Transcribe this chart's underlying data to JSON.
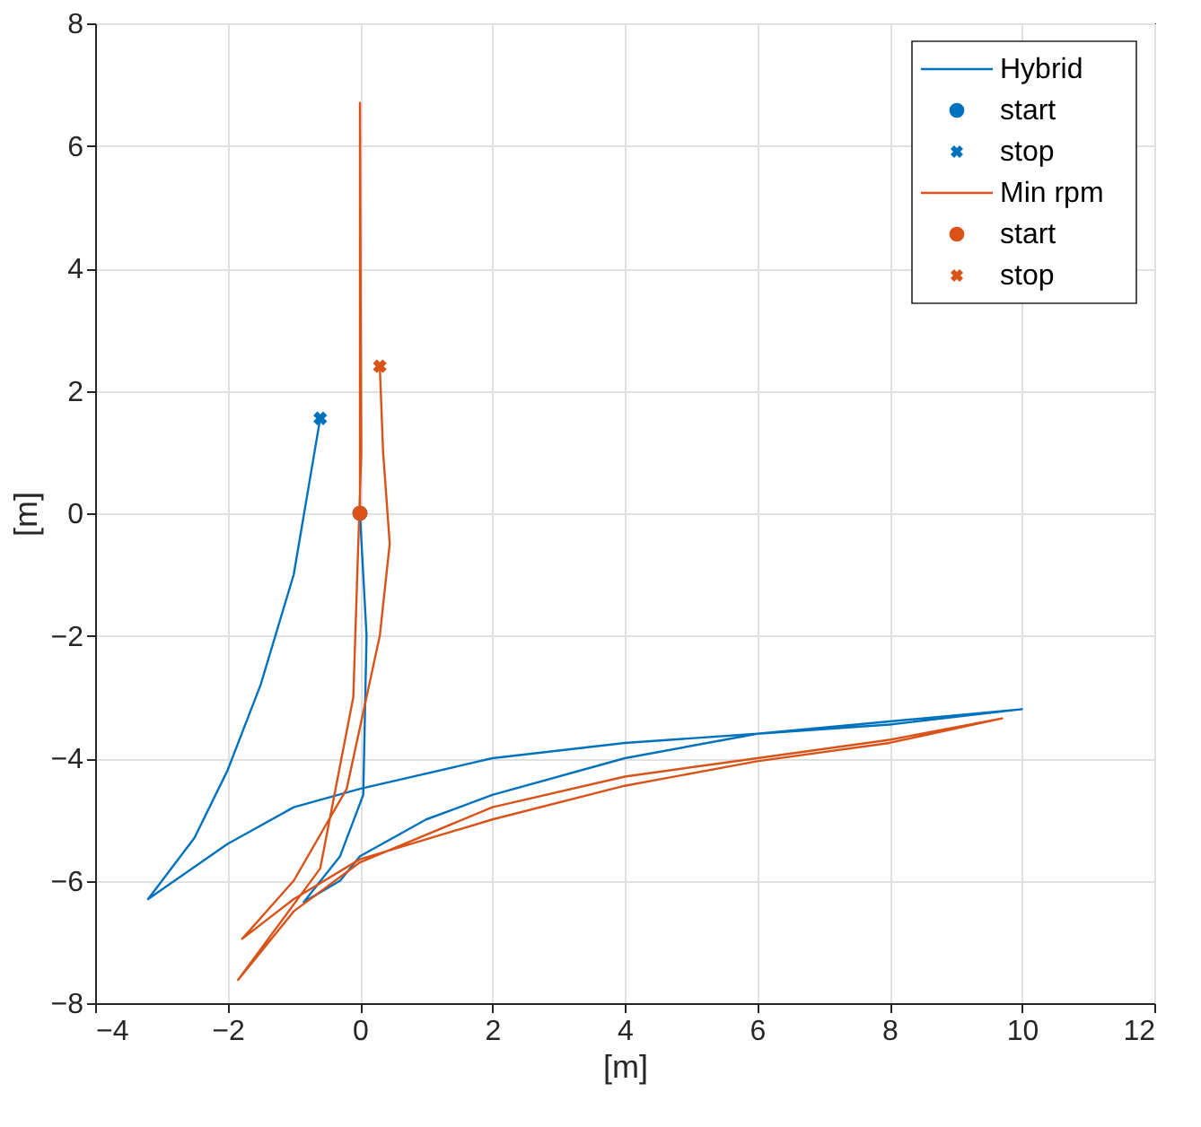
{
  "chart_data": {
    "type": "line",
    "xlabel": "[m]",
    "ylabel": "[m]",
    "xlim": [
      -4,
      12
    ],
    "ylim": [
      -8,
      8
    ],
    "xticks": [
      -4,
      -2,
      0,
      2,
      4,
      6,
      8,
      10,
      12
    ],
    "yticks": [
      -8,
      -6,
      -4,
      -2,
      0,
      2,
      4,
      6,
      8
    ],
    "grid": true,
    "legend": "top right",
    "series": [
      {
        "name": "Hybrid",
        "color": "#0072bd",
        "x": [
          0,
          0.1,
          0.05,
          -0.3,
          -0.85,
          -0.3,
          0,
          1,
          2,
          4,
          6,
          8,
          10,
          8,
          6,
          4,
          2,
          0,
          -1,
          -2,
          -3.2,
          -2.5,
          -2,
          -1.5,
          -1,
          -0.6
        ],
        "values": [
          0,
          -2,
          -4.6,
          -5.6,
          -6.35,
          -6.0,
          -5.6,
          -5.0,
          -4.6,
          -4.0,
          -3.6,
          -3.4,
          -3.2,
          -3.45,
          -3.6,
          -3.75,
          -4.0,
          -4.5,
          -4.8,
          -5.4,
          -6.3,
          -5.3,
          -4.2,
          -2.8,
          -1,
          1.55
        ]
      },
      {
        "name": "start",
        "type": "scatter",
        "marker": "circle",
        "color": "#0072bd",
        "x": [
          0
        ],
        "values": [
          0
        ]
      },
      {
        "name": "stop",
        "type": "scatter",
        "marker": "cross",
        "color": "#0072bd",
        "x": [
          -0.6
        ],
        "values": [
          1.55
        ]
      },
      {
        "name": "Min rpm",
        "color": "#d95319",
        "x": [
          0,
          0,
          0.02,
          -0.1,
          -0.6,
          -1.84,
          -1,
          0,
          2,
          4,
          6,
          8,
          9.7,
          8,
          6,
          4,
          2,
          0,
          -1,
          -1.78,
          -1,
          -0.2,
          0.3,
          0.45,
          0.35,
          0.3
        ],
        "values": [
          0,
          6.7,
          1,
          -3,
          -5.8,
          -7.62,
          -6.5,
          -5.7,
          -4.8,
          -4.3,
          -4.0,
          -3.7,
          -3.35,
          -3.75,
          -4.05,
          -4.45,
          -5.0,
          -5.65,
          -6.3,
          -6.95,
          -6.0,
          -4.5,
          -2,
          -0.5,
          1,
          2.4
        ]
      },
      {
        "name": "start",
        "type": "scatter",
        "marker": "circle",
        "color": "#d95319",
        "x": [
          0
        ],
        "values": [
          0
        ]
      },
      {
        "name": "stop",
        "type": "scatter",
        "marker": "cross",
        "color": "#d95319",
        "x": [
          0.3
        ],
        "values": [
          2.4
        ]
      }
    ]
  }
}
